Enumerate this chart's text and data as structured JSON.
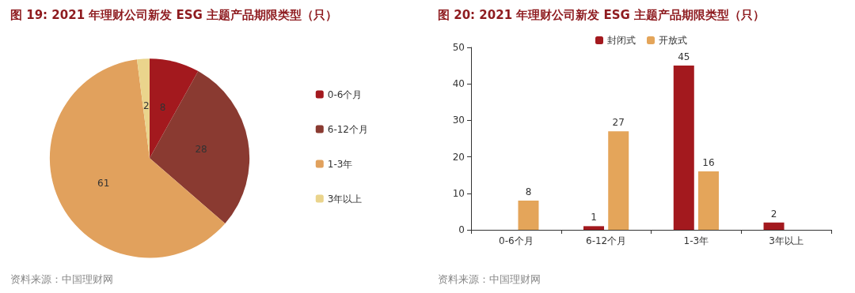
{
  "chart_data": [
    {
      "type": "pie",
      "title": "图 19: 2021 年理财公司新发 ESG 主题产品期限类型（只）",
      "categories": [
        "0-6个月",
        "6-12个月",
        "1-3年",
        "3年以上"
      ],
      "values": [
        8,
        28,
        61,
        2
      ],
      "colors": [
        "#a3191e",
        "#8a3a31",
        "#e1a15d",
        "#ead48c"
      ],
      "data_labels": true,
      "legend": "right",
      "annotations": [
        "资料来源：中国理财网"
      ]
    },
    {
      "type": "bar",
      "title": "图 20: 2021 年理财公司新发 ESG 主题产品期限类型（只）",
      "categories": [
        "0-6个月",
        "6-12个月",
        "1-3年",
        "3年以上"
      ],
      "series": [
        {
          "name": "封闭式",
          "color": "#a3191e",
          "values": [
            null,
            1,
            45,
            2
          ]
        },
        {
          "name": "开放式",
          "color": "#e4a55a",
          "values": [
            8,
            27,
            16,
            null
          ]
        }
      ],
      "ylim": [
        0,
        50
      ],
      "yticks": [
        0,
        10,
        20,
        30,
        40,
        50
      ],
      "grid": false,
      "legend": "top",
      "data_labels": true,
      "annotations": [
        "资料来源：中国理财网"
      ]
    }
  ]
}
